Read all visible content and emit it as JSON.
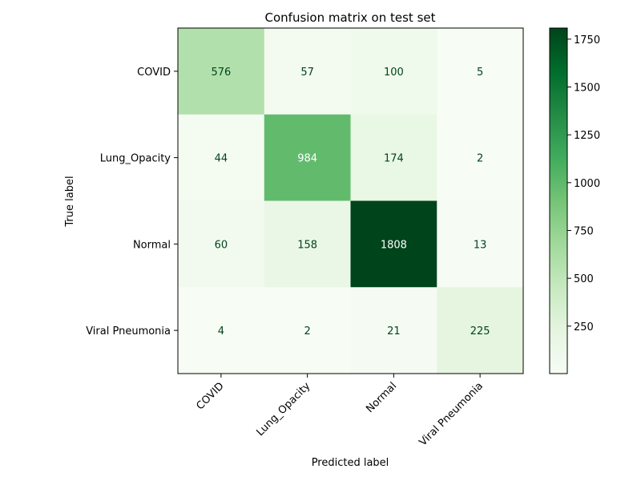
{
  "chart_data": {
    "type": "heatmap",
    "title": "Confusion matrix on test set",
    "xlabel": "Predicted label",
    "ylabel": "True label",
    "x_categories": [
      "COVID",
      "Lung_Opacity",
      "Normal",
      "Viral Pneumonia"
    ],
    "y_categories": [
      "COVID",
      "Lung_Opacity",
      "Normal",
      "Viral Pneumonia"
    ],
    "values": [
      [
        576,
        57,
        100,
        5
      ],
      [
        44,
        984,
        174,
        2
      ],
      [
        60,
        158,
        1808,
        13
      ],
      [
        4,
        2,
        21,
        225
      ]
    ],
    "colormap": "Greens",
    "color_range": [
      2,
      1808
    ],
    "colorbar_ticks": [
      250,
      500,
      750,
      1000,
      1250,
      1500,
      1750
    ],
    "colorbar_tick_labels": [
      "250",
      "500",
      "750",
      "1000",
      "1250",
      "1500",
      "1750"
    ],
    "text_color_light": "#ffffff",
    "text_color_dark": "#00441b"
  }
}
